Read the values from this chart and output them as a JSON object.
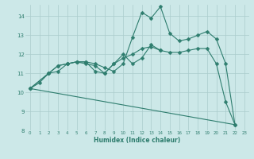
{
  "xlabel": "Humidex (Indice chaleur)",
  "ylabel": "",
  "background_color": "#cce8e8",
  "grid_color": "#aacccc",
  "line_color": "#2e7d6e",
  "xlim": [
    -0.5,
    23.5
  ],
  "ylim": [
    8,
    14.6
  ],
  "yticks": [
    8,
    9,
    10,
    11,
    12,
    13,
    14
  ],
  "xticks": [
    0,
    1,
    2,
    3,
    4,
    5,
    6,
    7,
    8,
    9,
    10,
    11,
    12,
    13,
    14,
    15,
    16,
    17,
    18,
    19,
    20,
    21,
    22,
    23
  ],
  "series1": [
    [
      0,
      10.2
    ],
    [
      1,
      10.5
    ],
    [
      2,
      11.0
    ],
    [
      3,
      11.1
    ],
    [
      4,
      11.5
    ],
    [
      5,
      11.6
    ],
    [
      6,
      11.6
    ],
    [
      7,
      11.1
    ],
    [
      8,
      11.0
    ],
    [
      9,
      11.5
    ],
    [
      10,
      11.8
    ],
    [
      11,
      12.0
    ],
    [
      12,
      12.3
    ],
    [
      13,
      12.4
    ],
    [
      14,
      12.2
    ],
    [
      15,
      12.1
    ],
    [
      16,
      12.1
    ],
    [
      17,
      12.2
    ],
    [
      18,
      12.3
    ],
    [
      19,
      12.3
    ],
    [
      20,
      11.5
    ],
    [
      21,
      9.5
    ],
    [
      22,
      8.3
    ]
  ],
  "series2": [
    [
      0,
      10.2
    ],
    [
      2,
      11.0
    ],
    [
      3,
      11.4
    ],
    [
      4,
      11.5
    ],
    [
      5,
      11.6
    ],
    [
      6,
      11.6
    ],
    [
      7,
      11.5
    ],
    [
      8,
      11.3
    ],
    [
      9,
      11.1
    ],
    [
      10,
      11.5
    ],
    [
      11,
      12.9
    ],
    [
      12,
      14.2
    ],
    [
      13,
      13.9
    ],
    [
      14,
      14.5
    ],
    [
      15,
      13.1
    ],
    [
      16,
      12.7
    ],
    [
      17,
      12.8
    ],
    [
      18,
      13.0
    ],
    [
      19,
      13.2
    ],
    [
      20,
      12.8
    ],
    [
      21,
      11.5
    ],
    [
      22,
      8.3
    ]
  ],
  "series3": [
    [
      0,
      10.2
    ],
    [
      2,
      11.0
    ],
    [
      3,
      11.4
    ],
    [
      4,
      11.5
    ],
    [
      5,
      11.6
    ],
    [
      6,
      11.5
    ],
    [
      7,
      11.4
    ],
    [
      8,
      11.0
    ],
    [
      9,
      11.5
    ],
    [
      10,
      12.0
    ],
    [
      11,
      11.5
    ],
    [
      12,
      11.8
    ],
    [
      13,
      12.5
    ],
    [
      14,
      12.2
    ]
  ],
  "series4": [
    [
      0,
      10.2
    ],
    [
      22,
      8.3
    ]
  ]
}
